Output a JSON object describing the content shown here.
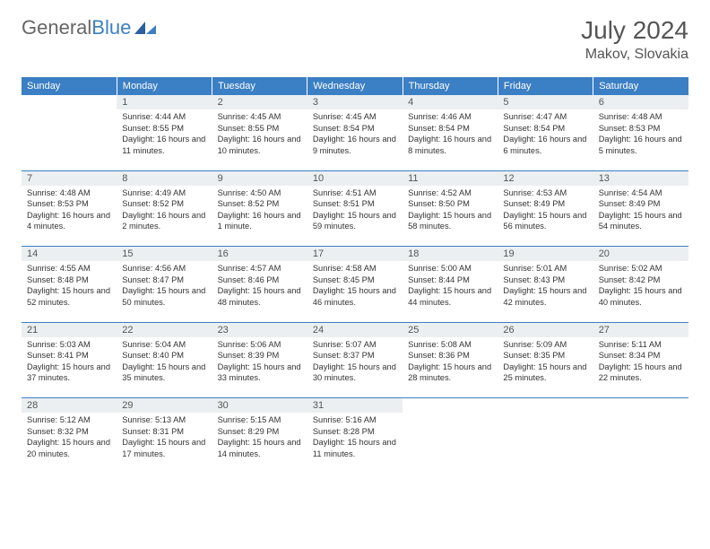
{
  "brand": {
    "part1": "General",
    "part2": "Blue"
  },
  "title": {
    "month_year": "July 2024",
    "location": "Makov, Slovakia"
  },
  "colors": {
    "header_bg": "#3b7fc4",
    "daynum_bg": "#eceff1",
    "text": "#333333",
    "muted": "#666666"
  },
  "day_headers": [
    "Sunday",
    "Monday",
    "Tuesday",
    "Wednesday",
    "Thursday",
    "Friday",
    "Saturday"
  ],
  "weeks": [
    [
      {
        "n": "",
        "sr": "",
        "ss": "",
        "dl": ""
      },
      {
        "n": "1",
        "sr": "Sunrise: 4:44 AM",
        "ss": "Sunset: 8:55 PM",
        "dl": "Daylight: 16 hours and 11 minutes."
      },
      {
        "n": "2",
        "sr": "Sunrise: 4:45 AM",
        "ss": "Sunset: 8:55 PM",
        "dl": "Daylight: 16 hours and 10 minutes."
      },
      {
        "n": "3",
        "sr": "Sunrise: 4:45 AM",
        "ss": "Sunset: 8:54 PM",
        "dl": "Daylight: 16 hours and 9 minutes."
      },
      {
        "n": "4",
        "sr": "Sunrise: 4:46 AM",
        "ss": "Sunset: 8:54 PM",
        "dl": "Daylight: 16 hours and 8 minutes."
      },
      {
        "n": "5",
        "sr": "Sunrise: 4:47 AM",
        "ss": "Sunset: 8:54 PM",
        "dl": "Daylight: 16 hours and 6 minutes."
      },
      {
        "n": "6",
        "sr": "Sunrise: 4:48 AM",
        "ss": "Sunset: 8:53 PM",
        "dl": "Daylight: 16 hours and 5 minutes."
      }
    ],
    [
      {
        "n": "7",
        "sr": "Sunrise: 4:48 AM",
        "ss": "Sunset: 8:53 PM",
        "dl": "Daylight: 16 hours and 4 minutes."
      },
      {
        "n": "8",
        "sr": "Sunrise: 4:49 AM",
        "ss": "Sunset: 8:52 PM",
        "dl": "Daylight: 16 hours and 2 minutes."
      },
      {
        "n": "9",
        "sr": "Sunrise: 4:50 AM",
        "ss": "Sunset: 8:52 PM",
        "dl": "Daylight: 16 hours and 1 minute."
      },
      {
        "n": "10",
        "sr": "Sunrise: 4:51 AM",
        "ss": "Sunset: 8:51 PM",
        "dl": "Daylight: 15 hours and 59 minutes."
      },
      {
        "n": "11",
        "sr": "Sunrise: 4:52 AM",
        "ss": "Sunset: 8:50 PM",
        "dl": "Daylight: 15 hours and 58 minutes."
      },
      {
        "n": "12",
        "sr": "Sunrise: 4:53 AM",
        "ss": "Sunset: 8:49 PM",
        "dl": "Daylight: 15 hours and 56 minutes."
      },
      {
        "n": "13",
        "sr": "Sunrise: 4:54 AM",
        "ss": "Sunset: 8:49 PM",
        "dl": "Daylight: 15 hours and 54 minutes."
      }
    ],
    [
      {
        "n": "14",
        "sr": "Sunrise: 4:55 AM",
        "ss": "Sunset: 8:48 PM",
        "dl": "Daylight: 15 hours and 52 minutes."
      },
      {
        "n": "15",
        "sr": "Sunrise: 4:56 AM",
        "ss": "Sunset: 8:47 PM",
        "dl": "Daylight: 15 hours and 50 minutes."
      },
      {
        "n": "16",
        "sr": "Sunrise: 4:57 AM",
        "ss": "Sunset: 8:46 PM",
        "dl": "Daylight: 15 hours and 48 minutes."
      },
      {
        "n": "17",
        "sr": "Sunrise: 4:58 AM",
        "ss": "Sunset: 8:45 PM",
        "dl": "Daylight: 15 hours and 46 minutes."
      },
      {
        "n": "18",
        "sr": "Sunrise: 5:00 AM",
        "ss": "Sunset: 8:44 PM",
        "dl": "Daylight: 15 hours and 44 minutes."
      },
      {
        "n": "19",
        "sr": "Sunrise: 5:01 AM",
        "ss": "Sunset: 8:43 PM",
        "dl": "Daylight: 15 hours and 42 minutes."
      },
      {
        "n": "20",
        "sr": "Sunrise: 5:02 AM",
        "ss": "Sunset: 8:42 PM",
        "dl": "Daylight: 15 hours and 40 minutes."
      }
    ],
    [
      {
        "n": "21",
        "sr": "Sunrise: 5:03 AM",
        "ss": "Sunset: 8:41 PM",
        "dl": "Daylight: 15 hours and 37 minutes."
      },
      {
        "n": "22",
        "sr": "Sunrise: 5:04 AM",
        "ss": "Sunset: 8:40 PM",
        "dl": "Daylight: 15 hours and 35 minutes."
      },
      {
        "n": "23",
        "sr": "Sunrise: 5:06 AM",
        "ss": "Sunset: 8:39 PM",
        "dl": "Daylight: 15 hours and 33 minutes."
      },
      {
        "n": "24",
        "sr": "Sunrise: 5:07 AM",
        "ss": "Sunset: 8:37 PM",
        "dl": "Daylight: 15 hours and 30 minutes."
      },
      {
        "n": "25",
        "sr": "Sunrise: 5:08 AM",
        "ss": "Sunset: 8:36 PM",
        "dl": "Daylight: 15 hours and 28 minutes."
      },
      {
        "n": "26",
        "sr": "Sunrise: 5:09 AM",
        "ss": "Sunset: 8:35 PM",
        "dl": "Daylight: 15 hours and 25 minutes."
      },
      {
        "n": "27",
        "sr": "Sunrise: 5:11 AM",
        "ss": "Sunset: 8:34 PM",
        "dl": "Daylight: 15 hours and 22 minutes."
      }
    ],
    [
      {
        "n": "28",
        "sr": "Sunrise: 5:12 AM",
        "ss": "Sunset: 8:32 PM",
        "dl": "Daylight: 15 hours and 20 minutes."
      },
      {
        "n": "29",
        "sr": "Sunrise: 5:13 AM",
        "ss": "Sunset: 8:31 PM",
        "dl": "Daylight: 15 hours and 17 minutes."
      },
      {
        "n": "30",
        "sr": "Sunrise: 5:15 AM",
        "ss": "Sunset: 8:29 PM",
        "dl": "Daylight: 15 hours and 14 minutes."
      },
      {
        "n": "31",
        "sr": "Sunrise: 5:16 AM",
        "ss": "Sunset: 8:28 PM",
        "dl": "Daylight: 15 hours and 11 minutes."
      },
      {
        "n": "",
        "sr": "",
        "ss": "",
        "dl": ""
      },
      {
        "n": "",
        "sr": "",
        "ss": "",
        "dl": ""
      },
      {
        "n": "",
        "sr": "",
        "ss": "",
        "dl": ""
      }
    ]
  ]
}
